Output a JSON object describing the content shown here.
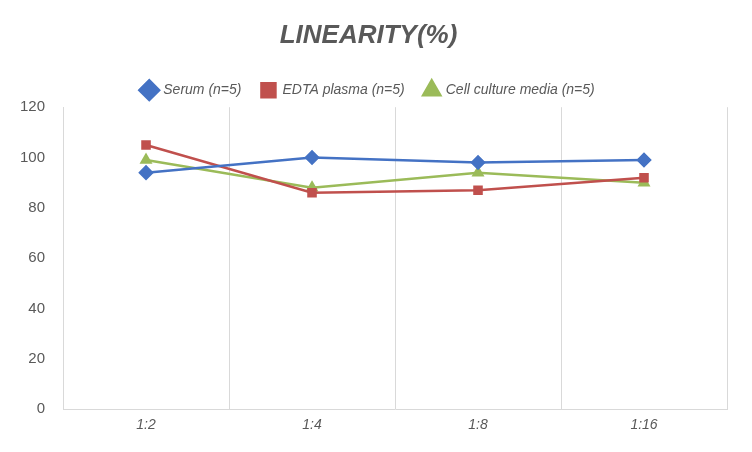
{
  "chart_data": {
    "type": "line",
    "title": "LINEARITY(%)",
    "categories": [
      "1:2",
      "1:4",
      "1:8",
      "1:16"
    ],
    "series": [
      {
        "name": "Serum (n=5)",
        "color": "#4472c4",
        "marker": "diamond",
        "values": [
          94,
          100,
          98,
          99
        ]
      },
      {
        "name": "EDTA plasma (n=5)",
        "color": "#c0504d",
        "marker": "square",
        "values": [
          105,
          86,
          87,
          92
        ]
      },
      {
        "name": "Cell culture media (n=5)",
        "color": "#9bbb59",
        "marker": "triangle",
        "values": [
          99,
          88,
          94,
          90
        ]
      }
    ],
    "ylim": [
      0,
      120
    ],
    "yticks": [
      0,
      20,
      40,
      60,
      80,
      100,
      120
    ],
    "grid": true,
    "legend": "top"
  }
}
